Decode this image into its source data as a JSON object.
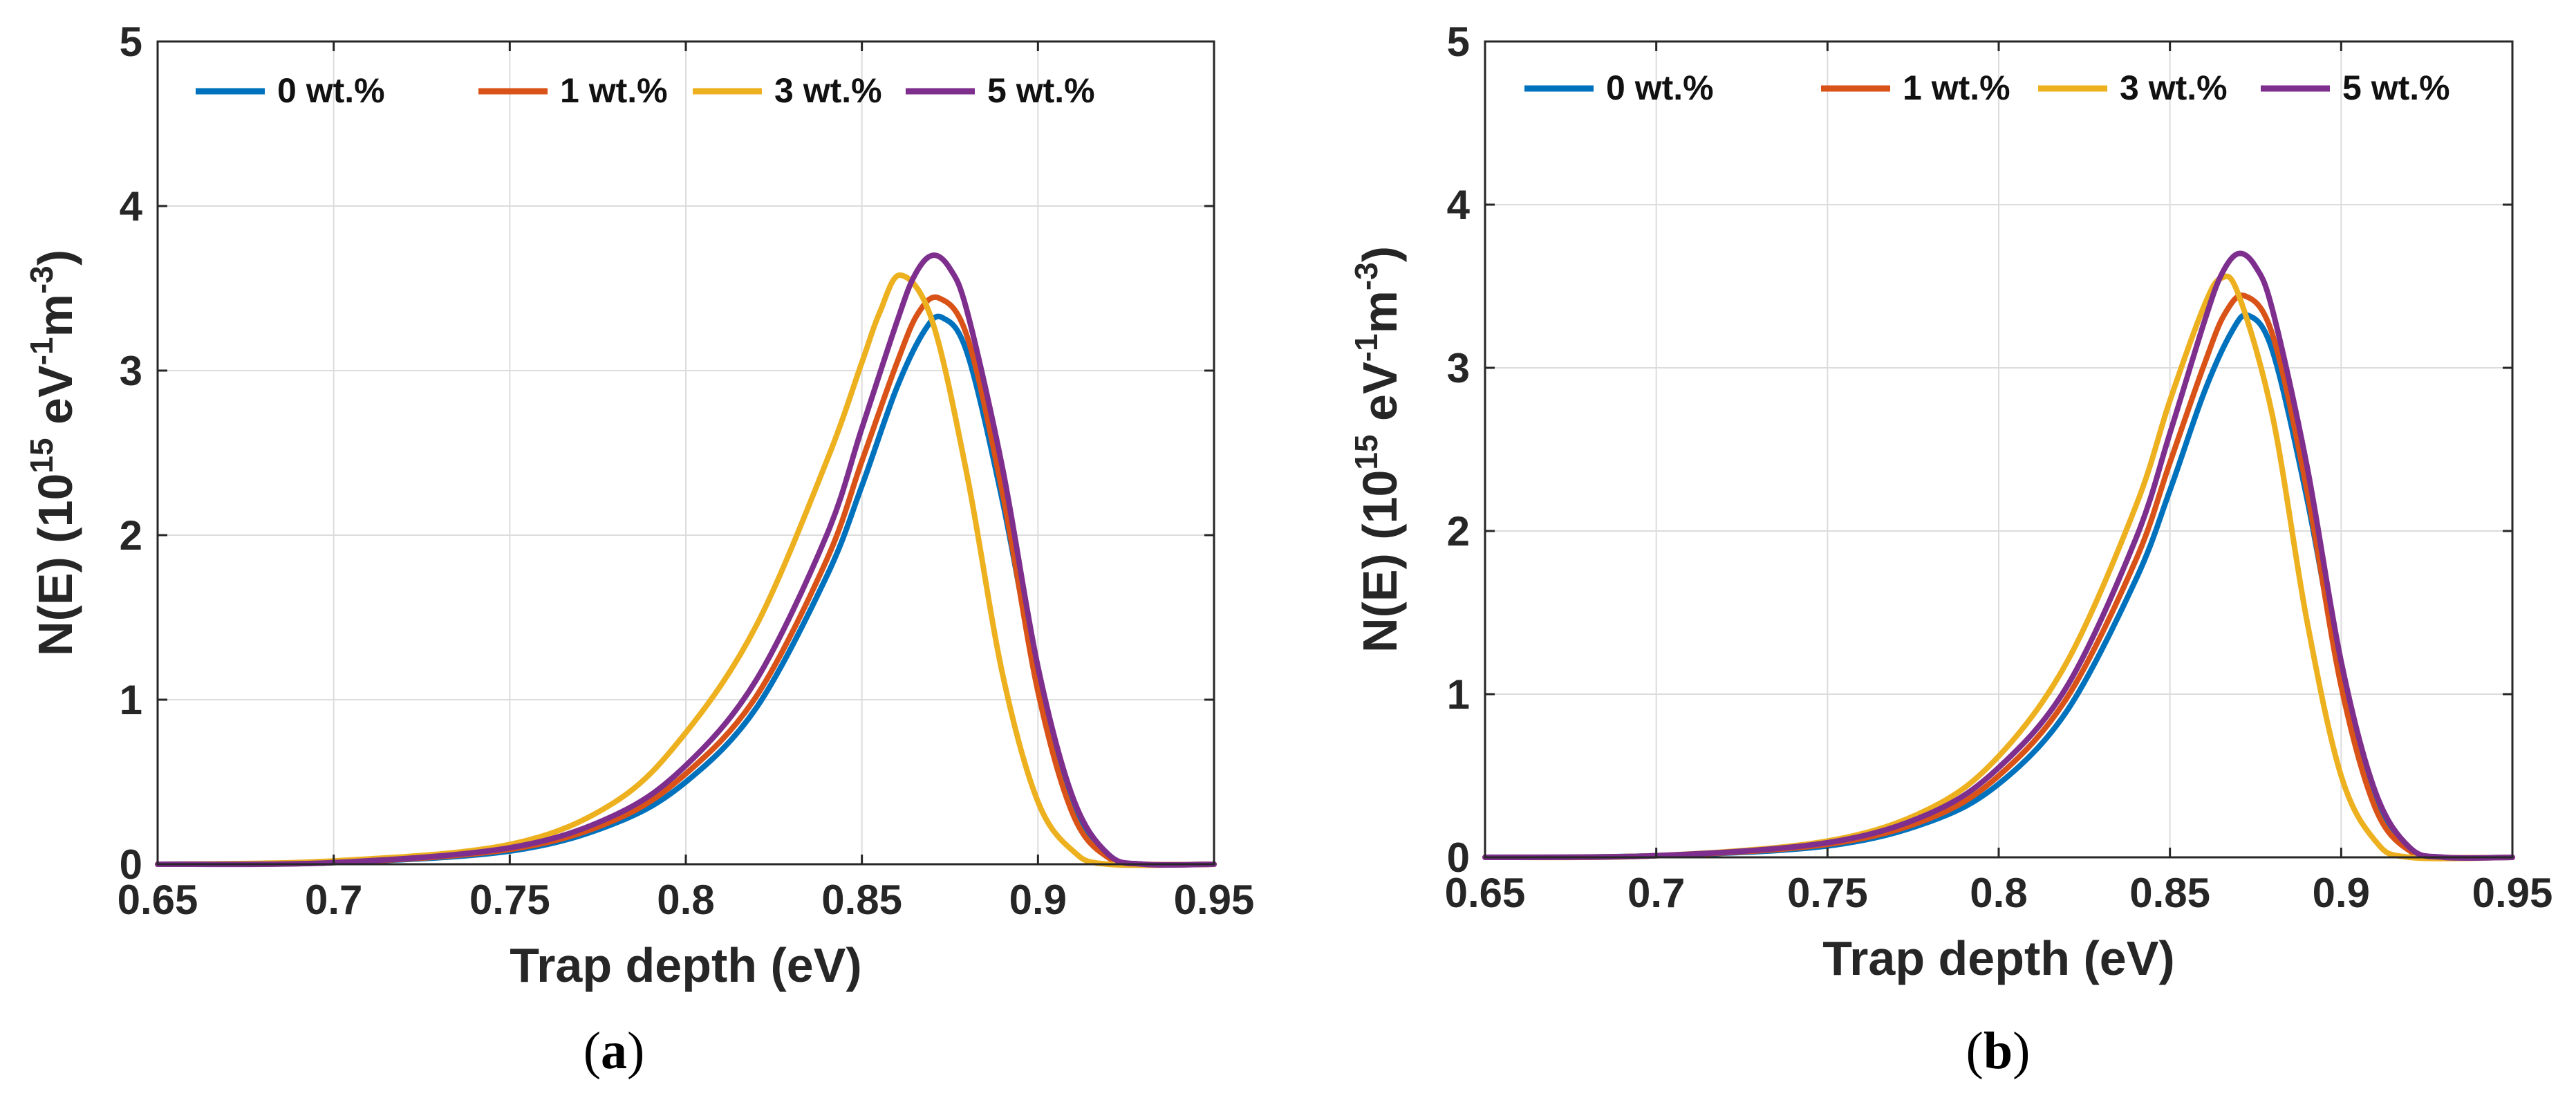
{
  "chart_data": [
    {
      "type": "line",
      "panel_label": "a",
      "caption": {
        "open": "(",
        "letter": "a",
        "close": ")"
      },
      "xlabel": "Trap depth (eV)",
      "ylabel": {
        "prefix": "N(E) (10",
        "exp1": "15",
        "mid1": " eV",
        "exp2": "-1",
        "mid2": "m",
        "exp3": "-3",
        "suffix": ")"
      },
      "xlim": [
        0.65,
        0.95
      ],
      "ylim": [
        0,
        5
      ],
      "xticks": [
        "0.65",
        "0.7",
        "0.75",
        "0.8",
        "0.85",
        "0.9",
        "0.95"
      ],
      "yticks": [
        "0",
        "1",
        "2",
        "3",
        "4",
        "5"
      ],
      "grid": true,
      "legend_position": "top",
      "series": [
        {
          "name": "0 wt.%",
          "color": "#0072BD",
          "x": [
            0.65,
            0.7,
            0.75,
            0.78,
            0.8,
            0.82,
            0.84,
            0.85,
            0.86,
            0.868,
            0.873,
            0.88,
            0.89,
            0.9,
            0.91,
            0.92,
            0.93,
            0.95
          ],
          "values": [
            0.0,
            0.01,
            0.08,
            0.25,
            0.5,
            0.95,
            1.75,
            2.3,
            2.9,
            3.25,
            3.32,
            3.1,
            2.2,
            1.1,
            0.35,
            0.05,
            0.0,
            0.0
          ]
        },
        {
          "name": "1 wt.%",
          "color": "#D95319",
          "x": [
            0.65,
            0.7,
            0.75,
            0.78,
            0.8,
            0.82,
            0.84,
            0.85,
            0.86,
            0.866,
            0.872,
            0.88,
            0.89,
            0.9,
            0.91,
            0.92,
            0.93,
            0.95
          ],
          "values": [
            0.0,
            0.01,
            0.09,
            0.27,
            0.55,
            1.02,
            1.85,
            2.45,
            3.05,
            3.35,
            3.44,
            3.2,
            2.25,
            1.05,
            0.3,
            0.04,
            0.0,
            0.0
          ]
        },
        {
          "name": "3 wt.%",
          "color": "#EDB120",
          "x": [
            0.65,
            0.7,
            0.75,
            0.78,
            0.8,
            0.82,
            0.84,
            0.85,
            0.855,
            0.861,
            0.87,
            0.88,
            0.89,
            0.9,
            0.91,
            0.92,
            0.95
          ],
          "values": [
            0.0,
            0.02,
            0.12,
            0.38,
            0.8,
            1.45,
            2.45,
            3.05,
            3.35,
            3.58,
            3.3,
            2.35,
            1.15,
            0.38,
            0.08,
            0.0,
            0.0
          ]
        },
        {
          "name": "5 wt.%",
          "color": "#7E2F8E",
          "x": [
            0.65,
            0.7,
            0.75,
            0.78,
            0.8,
            0.82,
            0.84,
            0.85,
            0.86,
            0.865,
            0.87,
            0.875,
            0.88,
            0.89,
            0.9,
            0.91,
            0.92,
            0.93,
            0.95
          ],
          "values": [
            0.0,
            0.01,
            0.1,
            0.3,
            0.6,
            1.12,
            2.0,
            2.65,
            3.3,
            3.58,
            3.7,
            3.62,
            3.35,
            2.4,
            1.2,
            0.4,
            0.06,
            0.0,
            0.0
          ]
        }
      ]
    },
    {
      "type": "line",
      "panel_label": "b",
      "caption": {
        "open": "(",
        "letter": "b",
        "close": ")"
      },
      "xlabel": "Trap depth (eV)",
      "ylabel": {
        "prefix": "N(E) (10",
        "exp1": "15",
        "mid1": " eV",
        "exp2": "-1",
        "mid2": "m",
        "exp3": "-3",
        "suffix": ")"
      },
      "xlim": [
        0.65,
        0.95
      ],
      "ylim": [
        0,
        5
      ],
      "xticks": [
        "0.65",
        "0.7",
        "0.75",
        "0.8",
        "0.85",
        "0.9",
        "0.95"
      ],
      "yticks": [
        "0",
        "1",
        "2",
        "3",
        "4",
        "5"
      ],
      "grid": true,
      "legend_position": "top",
      "series": [
        {
          "name": "0 wt.%",
          "color": "#0072BD",
          "x": [
            0.65,
            0.7,
            0.75,
            0.78,
            0.8,
            0.82,
            0.84,
            0.85,
            0.86,
            0.868,
            0.873,
            0.88,
            0.89,
            0.9,
            0.91,
            0.92,
            0.93,
            0.95
          ],
          "values": [
            0.0,
            0.01,
            0.07,
            0.22,
            0.45,
            0.9,
            1.7,
            2.25,
            2.85,
            3.22,
            3.32,
            3.1,
            2.2,
            1.1,
            0.35,
            0.05,
            0.0,
            0.0
          ]
        },
        {
          "name": "1 wt.%",
          "color": "#D95319",
          "x": [
            0.65,
            0.7,
            0.75,
            0.78,
            0.8,
            0.82,
            0.84,
            0.85,
            0.86,
            0.866,
            0.872,
            0.88,
            0.89,
            0.9,
            0.91,
            0.92,
            0.93,
            0.95
          ],
          "values": [
            0.0,
            0.01,
            0.08,
            0.24,
            0.5,
            0.98,
            1.82,
            2.42,
            3.02,
            3.33,
            3.44,
            3.2,
            2.25,
            1.05,
            0.3,
            0.04,
            0.0,
            0.0
          ]
        },
        {
          "name": "3 wt.%",
          "color": "#EDB120",
          "x": [
            0.65,
            0.7,
            0.75,
            0.78,
            0.8,
            0.82,
            0.84,
            0.85,
            0.86,
            0.865,
            0.87,
            0.88,
            0.89,
            0.9,
            0.91,
            0.92,
            0.95
          ],
          "values": [
            0.0,
            0.01,
            0.1,
            0.3,
            0.62,
            1.2,
            2.15,
            2.8,
            3.38,
            3.55,
            3.45,
            2.7,
            1.45,
            0.5,
            0.1,
            0.0,
            0.0
          ]
        },
        {
          "name": "5 wt.%",
          "color": "#7E2F8E",
          "x": [
            0.65,
            0.7,
            0.75,
            0.78,
            0.8,
            0.82,
            0.84,
            0.85,
            0.86,
            0.865,
            0.87,
            0.875,
            0.88,
            0.89,
            0.9,
            0.91,
            0.92,
            0.93,
            0.95
          ],
          "values": [
            0.0,
            0.01,
            0.09,
            0.27,
            0.55,
            1.05,
            1.95,
            2.6,
            3.28,
            3.57,
            3.7,
            3.62,
            3.35,
            2.4,
            1.2,
            0.4,
            0.06,
            0.0,
            0.0
          ]
        }
      ]
    }
  ]
}
